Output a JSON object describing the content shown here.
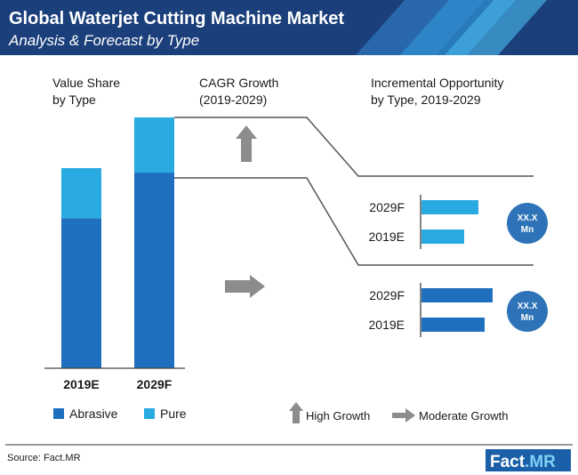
{
  "header": {
    "title": "Global Waterjet Cutting Machine Market",
    "subtitle": "Analysis & Forecast by Type"
  },
  "sections": {
    "value_share": [
      "Value Share",
      "by Type"
    ],
    "cagr": [
      "CAGR Growth",
      "(2019-2029)"
    ],
    "incremental": [
      "Incremental Opportunity",
      "by Type, 2019-2029"
    ]
  },
  "chart_data": [
    {
      "type": "bar",
      "stacked": true,
      "categories": [
        "2019E",
        "2029F"
      ],
      "series": [
        {
          "name": "Abrasive",
          "values": [
            75,
            78
          ]
        },
        {
          "name": "Pure",
          "values": [
            25,
            22
          ]
        }
      ],
      "ylim": [
        0,
        100
      ],
      "legend": "bottom",
      "colors": {
        "Abrasive": "#1f6fbf",
        "Pure": "#29abe2"
      }
    },
    {
      "type": "bar",
      "orientation": "horizontal",
      "categories": [
        "2029F",
        "2019E"
      ],
      "values": [
        64,
        48
      ],
      "xlim": [
        0,
        100
      ],
      "color": "#29abe2",
      "segment": "Pure",
      "opportunity": "XX.X Mn",
      "cagr_indicator": "High Growth"
    },
    {
      "type": "bar",
      "orientation": "horizontal",
      "categories": [
        "2029F",
        "2019E"
      ],
      "values": [
        80,
        71
      ],
      "xlim": [
        0,
        100
      ],
      "color": "#1f6fbf",
      "segment": "Abrasive",
      "opportunity": "XX.X Mn",
      "cagr_indicator": "Moderate Growth"
    }
  ],
  "opportunity_badges": [
    {
      "line1": "XX.X",
      "line2": "Mn"
    },
    {
      "line1": "XX.X",
      "line2": "Mn"
    }
  ],
  "arrow_legend": {
    "high": "High Growth",
    "moderate": "Moderate Growth"
  },
  "footer": {
    "source": "Source: Fact.MR",
    "logo_left": "Fact",
    "logo_right": ".MR"
  },
  "colors": {
    "header_bg": "#1b3f7a",
    "abrasive": "#1f6fbf",
    "pure": "#29abe2",
    "arrow": "#8c8c8c",
    "circle": "#2e73b8"
  }
}
